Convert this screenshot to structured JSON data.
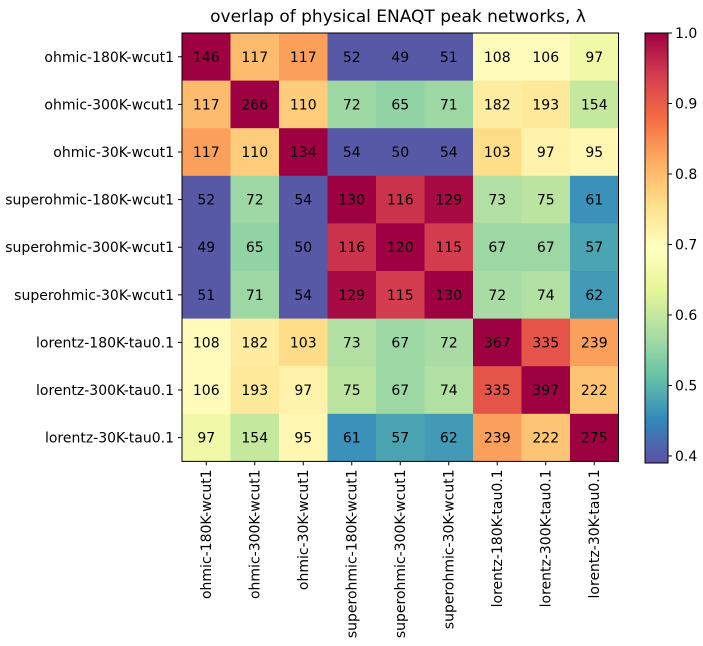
{
  "chart_data": {
    "type": "heatmap",
    "title": "overlap of physical ENAQT peak networks, λ",
    "row_labels": [
      "ohmic-180K-wcut1",
      "ohmic-300K-wcut1",
      "ohmic-30K-wcut1",
      "superohmic-180K-wcut1",
      "superohmic-300K-wcut1",
      "superohmic-30K-wcut1",
      "lorentz-180K-tau0.1",
      "lorentz-300K-tau0.1",
      "lorentz-30K-tau0.1"
    ],
    "col_labels": [
      "ohmic-180K-wcut1",
      "ohmic-300K-wcut1",
      "ohmic-30K-wcut1",
      "superohmic-180K-wcut1",
      "superohmic-300K-wcut1",
      "superohmic-30K-wcut1",
      "lorentz-180K-tau0.1",
      "lorentz-300K-tau0.1",
      "lorentz-30K-tau0.1"
    ],
    "annotations": [
      [
        146,
        117,
        117,
        52,
        49,
        51,
        108,
        106,
        97
      ],
      [
        117,
        266,
        110,
        72,
        65,
        71,
        182,
        193,
        154
      ],
      [
        117,
        110,
        134,
        54,
        50,
        54,
        103,
        97,
        95
      ],
      [
        52,
        72,
        54,
        130,
        116,
        129,
        73,
        75,
        61
      ],
      [
        49,
        65,
        50,
        116,
        120,
        115,
        67,
        67,
        57
      ],
      [
        51,
        71,
        54,
        129,
        115,
        130,
        72,
        74,
        62
      ],
      [
        108,
        182,
        103,
        73,
        67,
        72,
        367,
        335,
        239
      ],
      [
        106,
        193,
        97,
        75,
        67,
        74,
        335,
        397,
        222
      ],
      [
        97,
        154,
        95,
        61,
        57,
        62,
        239,
        222,
        275
      ]
    ],
    "values": [
      [
        1.0,
        0.8,
        0.83,
        0.4,
        0.4,
        0.4,
        0.7,
        0.7,
        0.66
      ],
      [
        0.8,
        1.0,
        0.78,
        0.56,
        0.55,
        0.56,
        0.73,
        0.74,
        0.6
      ],
      [
        0.83,
        0.78,
        1.0,
        0.4,
        0.4,
        0.4,
        0.76,
        0.72,
        0.71
      ],
      [
        0.4,
        0.56,
        0.4,
        1.0,
        0.95,
        0.99,
        0.58,
        0.59,
        0.46
      ],
      [
        0.4,
        0.55,
        0.4,
        0.95,
        1.0,
        0.94,
        0.56,
        0.56,
        0.48
      ],
      [
        0.4,
        0.56,
        0.4,
        0.99,
        0.94,
        1.0,
        0.57,
        0.58,
        0.47
      ],
      [
        0.7,
        0.73,
        0.76,
        0.58,
        0.56,
        0.57,
        1.0,
        0.91,
        0.83
      ],
      [
        0.7,
        0.74,
        0.72,
        0.59,
        0.56,
        0.58,
        0.91,
        1.0,
        0.79
      ],
      [
        0.66,
        0.6,
        0.71,
        0.46,
        0.48,
        0.47,
        0.83,
        0.79,
        1.0
      ]
    ],
    "colorbar": {
      "vmin": 0.39,
      "vmax": 1.0,
      "ticks": [
        0.4,
        0.5,
        0.6,
        0.7,
        0.8,
        0.9,
        1.0
      ],
      "tick_labels": [
        "0.4",
        "0.5",
        "0.6",
        "0.7",
        "0.8",
        "0.9",
        "1.0"
      ],
      "colormap": "Spectral_r"
    }
  }
}
